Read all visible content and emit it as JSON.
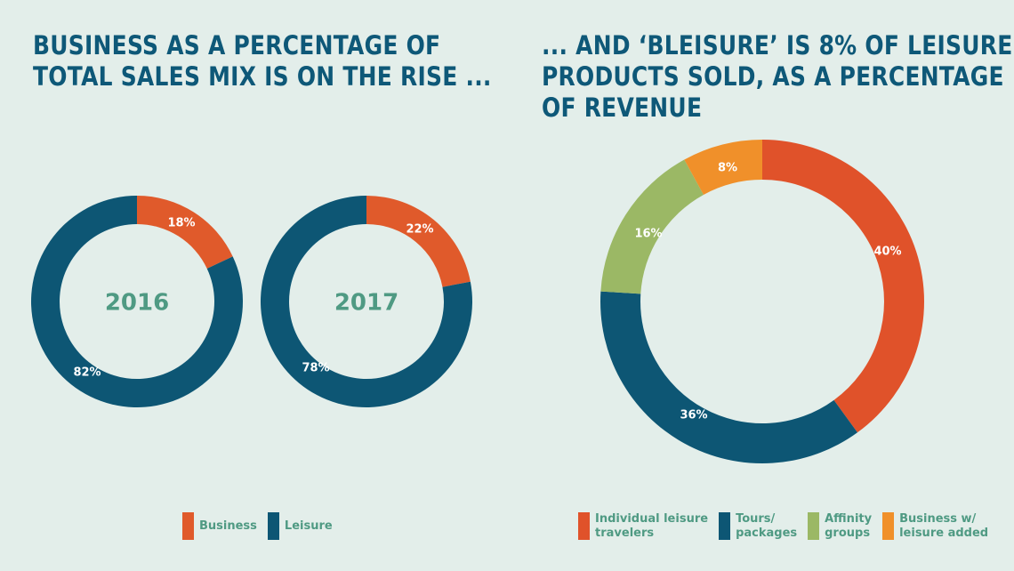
{
  "left": {
    "title_lines": [
      "BUSINESS AS A PERCENTAGE OF",
      "TOTAL SALES MIX IS ON THE RISE ..."
    ]
  },
  "right": {
    "title_lines": [
      "... AND ‘BLEISURE’ IS 8% OF LEISURE",
      "PRODUCTS SOLD, AS A PERCENTAGE",
      "OF REVENUE"
    ]
  },
  "colors": {
    "business": "#e05a2b",
    "leisure": "#0d5674",
    "individual": "#e0522a",
    "tours": "#0d5674",
    "affinity": "#9bb865",
    "bleisure": "#f0902a"
  },
  "chart_data": [
    {
      "type": "pie",
      "subtype": "donut",
      "center_label": "2016",
      "categories": [
        "Business",
        "Leisure"
      ],
      "values": [
        18,
        82
      ],
      "labels": [
        "18%",
        "82%"
      ]
    },
    {
      "type": "pie",
      "subtype": "donut",
      "center_label": "2017",
      "categories": [
        "Business",
        "Leisure"
      ],
      "values": [
        22,
        78
      ],
      "labels": [
        "22%",
        "78%"
      ]
    },
    {
      "type": "pie",
      "subtype": "donut",
      "categories": [
        "Individual leisure travelers",
        "Tours/ packages",
        "Affinity groups",
        "Business w/ leisure added"
      ],
      "values": [
        40,
        36,
        16,
        8
      ],
      "labels": [
        "40%",
        "36%",
        "16%",
        "8%"
      ]
    }
  ],
  "legend_left": [
    {
      "label": "Business",
      "color_key": "business"
    },
    {
      "label": "Leisure",
      "color_key": "leisure"
    }
  ],
  "legend_right": [
    {
      "label": "Individual leisure\ntravelers",
      "color_key": "individual"
    },
    {
      "label": "Tours/\npackages",
      "color_key": "tours"
    },
    {
      "label": "Affinity\ngroups",
      "color_key": "affinity"
    },
    {
      "label": "Business w/\nleisure added",
      "color_key": "bleisure"
    }
  ]
}
